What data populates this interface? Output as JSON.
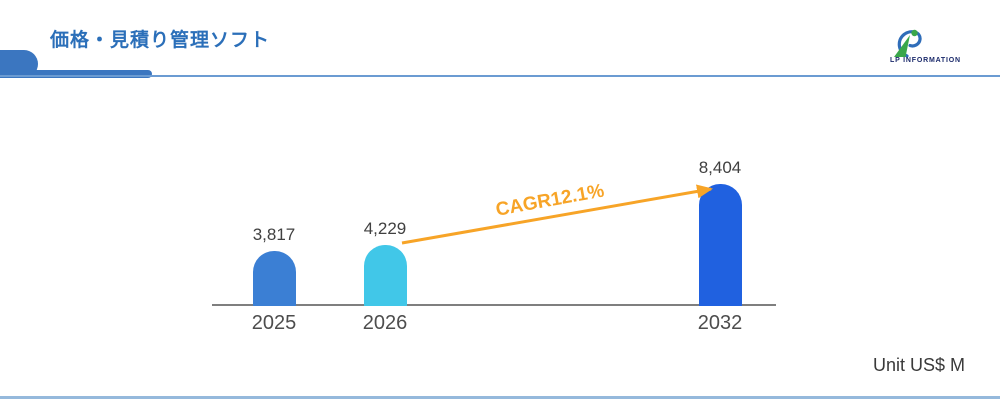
{
  "header": {
    "title": "価格・見積り管理ソフト",
    "logo_text": "LP INFORMATION"
  },
  "chart_data": {
    "type": "bar",
    "categories": [
      "2025",
      "2026",
      "2032"
    ],
    "values": [
      3817,
      4229,
      8404
    ],
    "value_labels": [
      "3,817",
      "4,229",
      "8,404"
    ],
    "bar_colors": [
      "#3B7FD4",
      "#41C7E8",
      "#2061E0"
    ],
    "annotation": "CAGR12.1%",
    "annotation_color": "#F7A427",
    "unit": "Unit US$ M",
    "ylim": [
      0,
      8404
    ],
    "grid": false,
    "legend": false,
    "xlabel": "",
    "ylabel": ""
  },
  "colors": {
    "accent_blue": "#3B76C0",
    "title_blue": "#2B6FB9",
    "header_line_blue": "#6B9BD2",
    "bottom_line_blue": "#95B9DC",
    "axis_gray": "#7F7F7F",
    "logo_navy": "#1B2A6B",
    "logo_green": "#3AA74A",
    "logo_blue": "#2F6DB9"
  }
}
